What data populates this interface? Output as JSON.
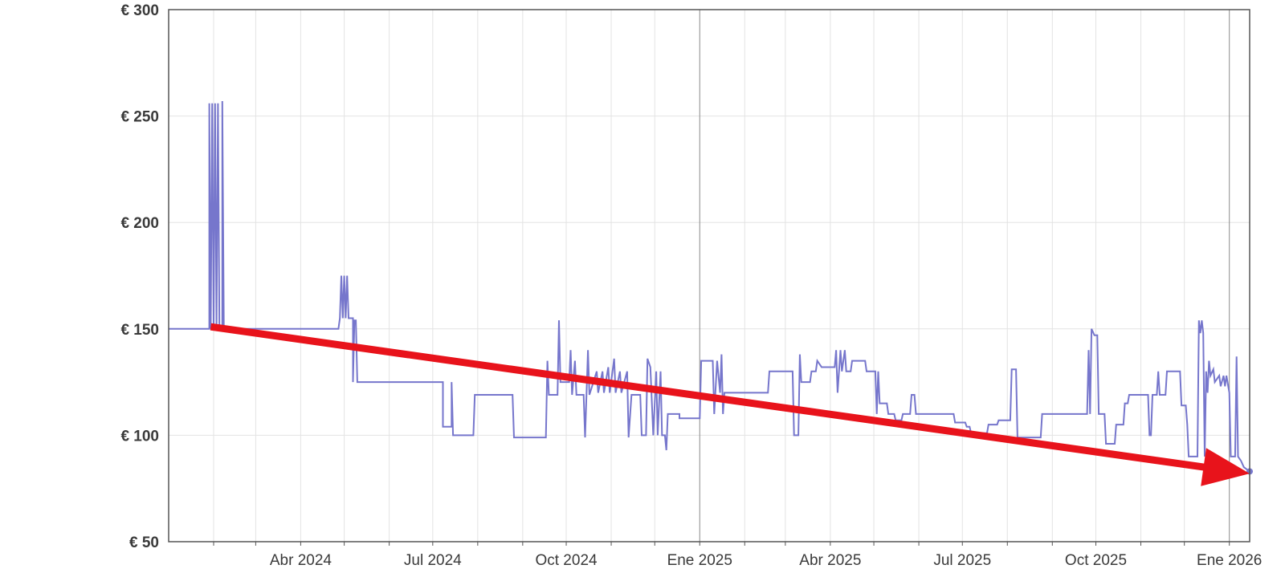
{
  "chart_data": {
    "type": "line",
    "title": "",
    "xlabel": "",
    "ylabel": "",
    "x_range": [
      "2024-01-01",
      "2026-01-15"
    ],
    "ylim": [
      50,
      300
    ],
    "y_ticks": [
      {
        "value": 300,
        "label": "€ 300"
      },
      {
        "value": 250,
        "label": "€ 250"
      },
      {
        "value": 200,
        "label": "€ 200"
      },
      {
        "value": 150,
        "label": "€ 150"
      },
      {
        "value": 100,
        "label": "€ 100"
      },
      {
        "value": 50,
        "label": "€ 50"
      }
    ],
    "x_ticks": [
      {
        "date": "2024-04-01",
        "label": "Abr 2024"
      },
      {
        "date": "2024-07-01",
        "label": "Jul 2024"
      },
      {
        "date": "2024-10-01",
        "label": "Oct 2024"
      },
      {
        "date": "2025-01-01",
        "label": "Ene 2025"
      },
      {
        "date": "2025-04-01",
        "label": "Abr 2025"
      },
      {
        "date": "2025-07-01",
        "label": "Jul 2025"
      },
      {
        "date": "2025-10-01",
        "label": "Oct 2025"
      },
      {
        "date": "2026-01-01",
        "label": "Ene 2026"
      }
    ],
    "minor_tick_dates": [
      "2024-02-01",
      "2024-03-01",
      "2024-05-01",
      "2024-06-01",
      "2024-08-01",
      "2024-09-01",
      "2024-11-01",
      "2024-12-01",
      "2025-02-01",
      "2025-03-01",
      "2025-05-01",
      "2025-06-01",
      "2025-08-01",
      "2025-09-01",
      "2025-11-01",
      "2025-12-01"
    ],
    "grid": true,
    "colors": {
      "series": "#7676cc",
      "trend_arrow": "#e8131b",
      "year_line": "#8a8a8a"
    },
    "series": [
      {
        "points": [
          [
            "2024-01-01",
            150
          ],
          [
            "2024-01-29",
            150
          ],
          [
            "2024-01-29",
            256
          ],
          [
            "2024-01-30",
            150
          ],
          [
            "2024-01-31",
            256
          ],
          [
            "2024-02-01",
            150
          ],
          [
            "2024-02-02",
            256
          ],
          [
            "2024-02-03",
            150
          ],
          [
            "2024-02-04",
            256
          ],
          [
            "2024-02-05",
            150
          ],
          [
            "2024-02-07",
            150
          ],
          [
            "2024-02-07",
            257
          ],
          [
            "2024-02-08",
            150
          ],
          [
            "2024-04-27",
            150
          ],
          [
            "2024-04-28",
            155
          ],
          [
            "2024-04-29",
            175
          ],
          [
            "2024-04-30",
            155
          ],
          [
            "2024-05-01",
            175
          ],
          [
            "2024-05-02",
            155
          ],
          [
            "2024-05-03",
            175
          ],
          [
            "2024-05-04",
            155
          ],
          [
            "2024-05-07",
            155
          ],
          [
            "2024-05-07",
            125
          ],
          [
            "2024-05-08",
            154
          ],
          [
            "2024-05-09",
            154
          ],
          [
            "2024-05-10",
            125
          ],
          [
            "2024-07-08",
            125
          ],
          [
            "2024-07-08",
            104
          ],
          [
            "2024-07-14",
            104
          ],
          [
            "2024-07-14",
            125
          ],
          [
            "2024-07-15",
            100
          ],
          [
            "2024-07-29",
            100
          ],
          [
            "2024-07-30",
            119
          ],
          [
            "2024-08-25",
            119
          ],
          [
            "2024-08-26",
            99
          ],
          [
            "2024-09-17",
            99
          ],
          [
            "2024-09-18",
            135
          ],
          [
            "2024-09-19",
            119
          ],
          [
            "2024-09-25",
            119
          ],
          [
            "2024-09-26",
            154
          ],
          [
            "2024-09-27",
            125
          ],
          [
            "2024-10-03",
            125
          ],
          [
            "2024-10-04",
            140
          ],
          [
            "2024-10-05",
            119
          ],
          [
            "2024-10-07",
            135
          ],
          [
            "2024-10-08",
            119
          ],
          [
            "2024-10-13",
            119
          ],
          [
            "2024-10-14",
            99
          ],
          [
            "2024-10-16",
            140
          ],
          [
            "2024-10-17",
            119
          ],
          [
            "2024-10-22",
            130
          ],
          [
            "2024-10-23",
            120
          ],
          [
            "2024-10-26",
            130
          ],
          [
            "2024-10-27",
            120
          ],
          [
            "2024-10-30",
            132
          ],
          [
            "2024-10-31",
            120
          ],
          [
            "2024-11-03",
            136
          ],
          [
            "2024-11-04",
            120
          ],
          [
            "2024-11-07",
            130
          ],
          [
            "2024-11-08",
            120
          ],
          [
            "2024-11-12",
            130
          ],
          [
            "2024-11-13",
            99
          ],
          [
            "2024-11-15",
            119
          ],
          [
            "2024-11-21",
            119
          ],
          [
            "2024-11-22",
            100
          ],
          [
            "2024-11-25",
            100
          ],
          [
            "2024-11-26",
            136
          ],
          [
            "2024-11-28",
            132
          ],
          [
            "2024-11-30",
            100
          ],
          [
            "2024-12-02",
            130
          ],
          [
            "2024-12-03",
            100
          ],
          [
            "2024-12-05",
            130
          ],
          [
            "2024-12-06",
            100
          ],
          [
            "2024-12-08",
            100
          ],
          [
            "2024-12-09",
            93
          ],
          [
            "2024-12-10",
            110
          ],
          [
            "2024-12-18",
            110
          ],
          [
            "2024-12-18",
            108
          ],
          [
            "2024-12-31",
            108
          ],
          [
            "2025-01-01",
            108
          ],
          [
            "2025-01-02",
            135
          ],
          [
            "2025-01-10",
            135
          ],
          [
            "2025-01-11",
            110
          ],
          [
            "2025-01-13",
            135
          ],
          [
            "2025-01-15",
            120
          ],
          [
            "2025-01-16",
            138
          ],
          [
            "2025-01-17",
            110
          ],
          [
            "2025-01-18",
            120
          ],
          [
            "2025-02-17",
            120
          ],
          [
            "2025-02-18",
            130
          ],
          [
            "2025-03-06",
            130
          ],
          [
            "2025-03-07",
            100
          ],
          [
            "2025-03-10",
            100
          ],
          [
            "2025-03-11",
            138
          ],
          [
            "2025-03-12",
            125
          ],
          [
            "2025-03-18",
            125
          ],
          [
            "2025-03-19",
            130
          ],
          [
            "2025-03-22",
            130
          ],
          [
            "2025-03-23",
            135
          ],
          [
            "2025-03-26",
            132
          ],
          [
            "2025-04-04",
            132
          ],
          [
            "2025-04-05",
            140
          ],
          [
            "2025-04-06",
            120
          ],
          [
            "2025-04-08",
            140
          ],
          [
            "2025-04-09",
            130
          ],
          [
            "2025-04-11",
            140
          ],
          [
            "2025-04-12",
            130
          ],
          [
            "2025-04-15",
            130
          ],
          [
            "2025-04-16",
            135
          ],
          [
            "2025-04-25",
            135
          ],
          [
            "2025-04-26",
            130
          ],
          [
            "2025-05-02",
            130
          ],
          [
            "2025-05-03",
            110
          ],
          [
            "2025-05-04",
            130
          ],
          [
            "2025-05-05",
            115
          ],
          [
            "2025-05-10",
            115
          ],
          [
            "2025-05-11",
            110
          ],
          [
            "2025-05-15",
            110
          ],
          [
            "2025-05-16",
            107
          ],
          [
            "2025-05-20",
            107
          ],
          [
            "2025-05-21",
            110
          ],
          [
            "2025-05-26",
            110
          ],
          [
            "2025-05-27",
            119
          ],
          [
            "2025-05-29",
            119
          ],
          [
            "2025-05-30",
            110
          ],
          [
            "2025-06-25",
            110
          ],
          [
            "2025-06-26",
            106
          ],
          [
            "2025-07-03",
            106
          ],
          [
            "2025-07-04",
            104
          ],
          [
            "2025-07-06",
            104
          ],
          [
            "2025-07-07",
            101
          ],
          [
            "2025-07-18",
            101
          ],
          [
            "2025-07-19",
            105
          ],
          [
            "2025-07-25",
            105
          ],
          [
            "2025-07-26",
            107
          ],
          [
            "2025-08-03",
            107
          ],
          [
            "2025-08-04",
            131
          ],
          [
            "2025-08-07",
            131
          ],
          [
            "2025-08-08",
            99
          ],
          [
            "2025-08-24",
            99
          ],
          [
            "2025-08-25",
            110
          ],
          [
            "2025-09-25",
            110
          ],
          [
            "2025-09-26",
            140
          ],
          [
            "2025-09-27",
            110
          ],
          [
            "2025-09-28",
            150
          ],
          [
            "2025-09-30",
            147
          ],
          [
            "2025-10-02",
            147
          ],
          [
            "2025-10-03",
            110
          ],
          [
            "2025-10-07",
            110
          ],
          [
            "2025-10-08",
            96
          ],
          [
            "2025-10-14",
            96
          ],
          [
            "2025-10-15",
            105
          ],
          [
            "2025-10-20",
            105
          ],
          [
            "2025-10-21",
            115
          ],
          [
            "2025-10-23",
            115
          ],
          [
            "2025-10-24",
            119
          ],
          [
            "2025-11-06",
            119
          ],
          [
            "2025-11-07",
            100
          ],
          [
            "2025-11-08",
            100
          ],
          [
            "2025-11-09",
            119
          ],
          [
            "2025-11-12",
            119
          ],
          [
            "2025-11-13",
            130
          ],
          [
            "2025-11-14",
            119
          ],
          [
            "2025-11-18",
            119
          ],
          [
            "2025-11-19",
            130
          ],
          [
            "2025-11-28",
            130
          ],
          [
            "2025-11-29",
            114
          ],
          [
            "2025-12-02",
            114
          ],
          [
            "2025-12-03",
            105
          ],
          [
            "2025-12-04",
            90
          ],
          [
            "2025-12-10",
            90
          ],
          [
            "2025-12-11",
            154
          ],
          [
            "2025-12-12",
            148
          ],
          [
            "2025-12-13",
            154
          ],
          [
            "2025-12-14",
            148
          ],
          [
            "2025-12-15",
            90
          ],
          [
            "2025-12-16",
            130
          ],
          [
            "2025-12-17",
            120
          ],
          [
            "2025-12-18",
            135
          ],
          [
            "2025-12-19",
            128
          ],
          [
            "2025-12-21",
            131
          ],
          [
            "2025-12-22",
            125
          ],
          [
            "2025-12-25",
            128
          ],
          [
            "2025-12-26",
            123
          ],
          [
            "2025-12-28",
            128
          ],
          [
            "2025-12-29",
            123
          ],
          [
            "2025-12-30",
            128
          ],
          [
            "2026-01-01",
            120
          ],
          [
            "2026-01-02",
            90
          ],
          [
            "2026-01-05",
            90
          ],
          [
            "2026-01-06",
            137
          ],
          [
            "2026-01-07",
            90
          ],
          [
            "2026-01-09",
            88
          ],
          [
            "2026-01-11",
            85
          ],
          [
            "2026-01-15",
            83
          ]
        ]
      }
    ],
    "annotations": [
      {
        "type": "arrow",
        "color": "#e8131b",
        "from": {
          "x": "2024-01-30",
          "y": 151
        },
        "to": {
          "x": "2026-01-15",
          "y": 82
        }
      }
    ]
  }
}
